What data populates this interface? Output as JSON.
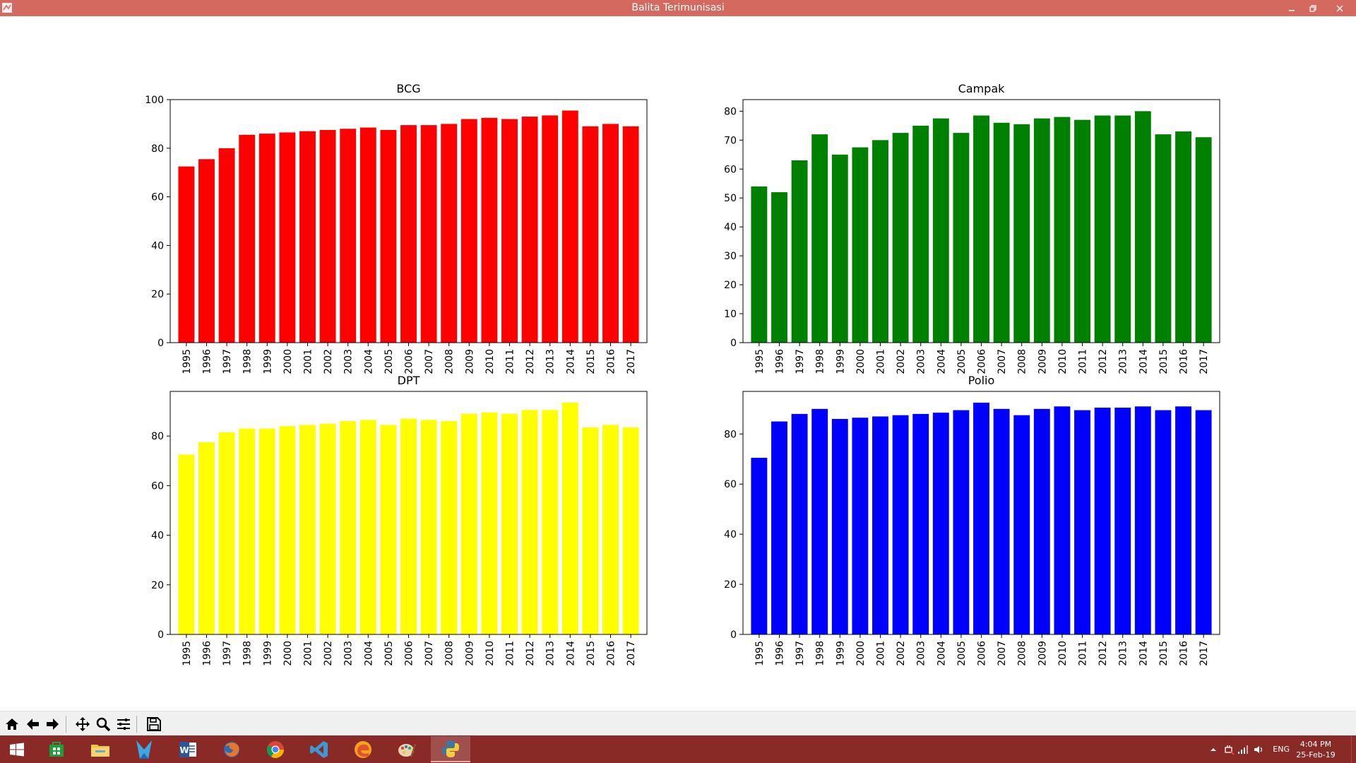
{
  "window": {
    "title": "Balita Terimunisasi",
    "icon": "python-figure-icon",
    "controls": [
      "minimize-icon",
      "restore-icon",
      "close-icon"
    ]
  },
  "toolbar": {
    "buttons": [
      "home-icon",
      "back-arrow-icon",
      "forward-arrow-icon",
      "pan-icon",
      "zoom-icon",
      "subplots-icon",
      "save-icon"
    ]
  },
  "taskbar": {
    "apps": [
      "windows-start-icon",
      "store-icon",
      "file-explorer-icon",
      "kate-editor-icon",
      "word-icon",
      "firefox-icon",
      "chrome-icon",
      "vscode-icon",
      "edge-icon",
      "paint-icon",
      "python-icon"
    ],
    "tray": {
      "language": "ENG",
      "time": "4:04 PM",
      "date": "25-Feb-19"
    }
  },
  "chart_data": [
    {
      "type": "bar",
      "title": "BCG",
      "color": "#ff0000",
      "categories": [
        "1995",
        "1996",
        "1997",
        "1998",
        "1999",
        "2000",
        "2001",
        "2002",
        "2003",
        "2004",
        "2005",
        "2006",
        "2007",
        "2008",
        "2009",
        "2010",
        "2011",
        "2012",
        "2013",
        "2014",
        "2015",
        "2016",
        "2017"
      ],
      "values": [
        72.5,
        75.5,
        80.0,
        85.5,
        86.0,
        86.5,
        87.0,
        87.5,
        88.0,
        88.5,
        87.5,
        89.5,
        89.5,
        90.0,
        92.0,
        92.5,
        92.0,
        93.0,
        93.5,
        95.5,
        89.0,
        90.0,
        89.0
      ],
      "ylim": [
        0,
        100
      ],
      "yticks": [
        0,
        20,
        40,
        60,
        80,
        100
      ],
      "xlabel": "",
      "ylabel": ""
    },
    {
      "type": "bar",
      "title": "Campak",
      "color": "#008000",
      "categories": [
        "1995",
        "1996",
        "1997",
        "1998",
        "1999",
        "2000",
        "2001",
        "2002",
        "2003",
        "2004",
        "2005",
        "2006",
        "2007",
        "2008",
        "2009",
        "2010",
        "2011",
        "2012",
        "2013",
        "2014",
        "2015",
        "2016",
        "2017"
      ],
      "values": [
        54.0,
        52.0,
        63.0,
        72.0,
        65.0,
        67.5,
        70.0,
        72.5,
        75.0,
        77.5,
        72.5,
        78.5,
        76.0,
        75.5,
        77.5,
        78.0,
        77.0,
        78.5,
        78.5,
        80.0,
        72.0,
        73.0,
        71.0
      ],
      "ylim": [
        0,
        84
      ],
      "yticks": [
        0,
        10,
        20,
        30,
        40,
        50,
        60,
        70,
        80
      ],
      "xlabel": "",
      "ylabel": ""
    },
    {
      "type": "bar",
      "title": "DPT",
      "color": "#ffff00",
      "categories": [
        "1995",
        "1996",
        "1997",
        "1998",
        "1999",
        "2000",
        "2001",
        "2002",
        "2003",
        "2004",
        "2005",
        "2006",
        "2007",
        "2008",
        "2009",
        "2010",
        "2011",
        "2012",
        "2013",
        "2014",
        "2015",
        "2016",
        "2017"
      ],
      "values": [
        72.5,
        77.5,
        81.5,
        83.0,
        83.0,
        84.0,
        84.5,
        85.0,
        86.0,
        86.5,
        84.5,
        87.0,
        86.5,
        86.0,
        89.0,
        89.5,
        89.0,
        90.5,
        90.5,
        93.5,
        83.5,
        84.5,
        83.5
      ],
      "ylim": [
        0,
        98
      ],
      "yticks": [
        0,
        20,
        40,
        60,
        80
      ],
      "xlabel": "",
      "ylabel": ""
    },
    {
      "type": "bar",
      "title": "Polio",
      "color": "#0000ff",
      "categories": [
        "1995",
        "1996",
        "1997",
        "1998",
        "1999",
        "2000",
        "2001",
        "2002",
        "2003",
        "2004",
        "2005",
        "2006",
        "2007",
        "2008",
        "2009",
        "2010",
        "2011",
        "2012",
        "2013",
        "2014",
        "2015",
        "2016",
        "2017"
      ],
      "values": [
        70.5,
        85.0,
        88.0,
        90.0,
        86.0,
        86.5,
        87.0,
        87.5,
        88.0,
        88.5,
        89.5,
        92.5,
        90.0,
        87.5,
        90.0,
        91.0,
        89.5,
        90.5,
        90.5,
        91.0,
        89.5,
        91.0,
        89.5
      ],
      "ylim": [
        0,
        97
      ],
      "yticks": [
        0,
        20,
        40,
        60,
        80
      ],
      "xlabel": "",
      "ylabel": ""
    }
  ]
}
